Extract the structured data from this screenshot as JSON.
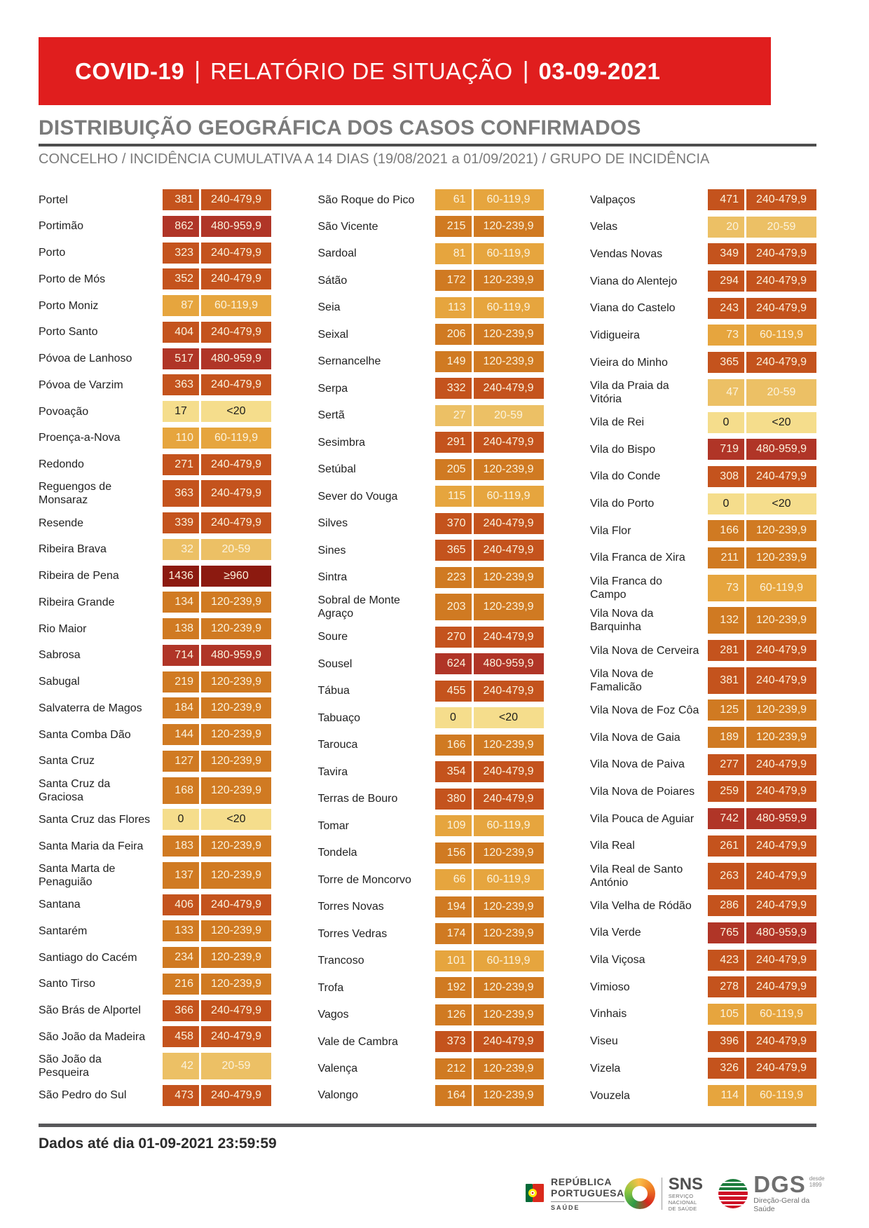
{
  "banner": {
    "product": "COVID-19",
    "separator": "|",
    "title": "RELATÓRIO DE SITUAÇÃO",
    "date": "03-09-2021",
    "background_color": "#E01E1E"
  },
  "heading": {
    "title": "DISTRIBUIÇÃO GEOGRÁFICA DOS CASOS CONFIRMADOS",
    "subtitle": "CONCELHO / INCIDÊNCIA CUMULATIVA A 14 DIAS (19/08/2021 a 01/09/2021) / GRUPO DE INCIDÊNCIA"
  },
  "bands": {
    "lt20": {
      "label": "<20",
      "bg": "#F5DD8C",
      "fg": "#1D1D1B"
    },
    "b20": {
      "label": "20-59",
      "bg": "#ECC065",
      "fg": "#FBF2DC"
    },
    "b60": {
      "label": "60-119,9",
      "bg": "#E6A53E",
      "fg": "#FBF2DC"
    },
    "b120": {
      "label": "120-239,9",
      "bg": "#D07A22",
      "fg": "#FBF2DC"
    },
    "b240": {
      "label": "240-479,9",
      "bg": "#C4531D",
      "fg": "#FBF2DC"
    },
    "b480": {
      "label": "480-959,9",
      "bg": "#B03527",
      "fg": "#FBF2DC"
    },
    "b960": {
      "label": "≥960",
      "bg": "#8C1A10",
      "fg": "#FBF2DC"
    }
  },
  "table": {
    "columns": [
      {
        "rows": [
          {
            "n": "Portel",
            "v": "381",
            "g": "240-479,9",
            "b": "b240"
          },
          {
            "n": "Portimão",
            "v": "862",
            "g": "480-959,9",
            "b": "b480"
          },
          {
            "n": "Porto",
            "v": "323",
            "g": "240-479,9",
            "b": "b240"
          },
          {
            "n": "Porto de Mós",
            "v": "352",
            "g": "240-479,9",
            "b": "b240"
          },
          {
            "n": "Porto Moniz",
            "v": "87",
            "g": "60-119,9",
            "b": "b60"
          },
          {
            "n": "Porto Santo",
            "v": "404",
            "g": "240-479,9",
            "b": "b240"
          },
          {
            "n": "Póvoa de Lanhoso",
            "v": "517",
            "g": "480-959,9",
            "b": "b480"
          },
          {
            "n": "Póvoa de Varzim",
            "v": "363",
            "g": "240-479,9",
            "b": "b240"
          },
          {
            "n": "Povoação",
            "v": "17",
            "g": "<20",
            "b": "lt20"
          },
          {
            "n": "Proença-a-Nova",
            "v": "110",
            "g": "60-119,9",
            "b": "b60"
          },
          {
            "n": "Redondo",
            "v": "271",
            "g": "240-479,9",
            "b": "b240"
          },
          {
            "n": "Reguengos de\nMonsaraz",
            "v": "363",
            "g": "240-479,9",
            "b": "b240"
          },
          {
            "n": "Resende",
            "v": "339",
            "g": "240-479,9",
            "b": "b240"
          },
          {
            "n": "Ribeira Brava",
            "v": "32",
            "g": "20-59",
            "b": "b20"
          },
          {
            "n": "Ribeira de Pena",
            "v": "1436",
            "g": "≥960",
            "b": "b960"
          },
          {
            "n": "Ribeira Grande",
            "v": "134",
            "g": "120-239,9",
            "b": "b120"
          },
          {
            "n": "Rio Maior",
            "v": "138",
            "g": "120-239,9",
            "b": "b120"
          },
          {
            "n": "Sabrosa",
            "v": "714",
            "g": "480-959,9",
            "b": "b480"
          },
          {
            "n": "Sabugal",
            "v": "219",
            "g": "120-239,9",
            "b": "b120"
          },
          {
            "n": "Salvaterra de Magos",
            "v": "184",
            "g": "120-239,9",
            "b": "b120"
          },
          {
            "n": "Santa Comba Dão",
            "v": "144",
            "g": "120-239,9",
            "b": "b120"
          },
          {
            "n": "Santa Cruz",
            "v": "127",
            "g": "120-239,9",
            "b": "b120"
          },
          {
            "n": "Santa Cruz da\nGraciosa",
            "v": "168",
            "g": "120-239,9",
            "b": "b120"
          },
          {
            "n": "Santa Cruz das Flores",
            "v": "0",
            "g": "<20",
            "b": "lt20"
          },
          {
            "n": "Santa Maria da Feira",
            "v": "183",
            "g": "120-239,9",
            "b": "b120"
          },
          {
            "n": "Santa Marta de\nPenaguião",
            "v": "137",
            "g": "120-239,9",
            "b": "b120"
          },
          {
            "n": "Santana",
            "v": "406",
            "g": "240-479,9",
            "b": "b240"
          },
          {
            "n": "Santarém",
            "v": "133",
            "g": "120-239,9",
            "b": "b120"
          },
          {
            "n": "Santiago do Cacém",
            "v": "234",
            "g": "120-239,9",
            "b": "b120"
          },
          {
            "n": "Santo Tirso",
            "v": "216",
            "g": "120-239,9",
            "b": "b120"
          },
          {
            "n": "São Brás de Alportel",
            "v": "366",
            "g": "240-479,9",
            "b": "b240"
          },
          {
            "n": "São João da Madeira",
            "v": "458",
            "g": "240-479,9",
            "b": "b240"
          },
          {
            "n": "São João da\nPesqueira",
            "v": "42",
            "g": "20-59",
            "b": "b20"
          },
          {
            "n": "São Pedro do Sul",
            "v": "473",
            "g": "240-479,9",
            "b": "b240"
          }
        ]
      },
      {
        "rows": [
          {
            "n": "São Roque do Pico",
            "v": "61",
            "g": "60-119,9",
            "b": "b60"
          },
          {
            "n": "São Vicente",
            "v": "215",
            "g": "120-239,9",
            "b": "b120"
          },
          {
            "n": "Sardoal",
            "v": "81",
            "g": "60-119,9",
            "b": "b60"
          },
          {
            "n": "Sátão",
            "v": "172",
            "g": "120-239,9",
            "b": "b120"
          },
          {
            "n": "Seia",
            "v": "113",
            "g": "60-119,9",
            "b": "b60"
          },
          {
            "n": "Seixal",
            "v": "206",
            "g": "120-239,9",
            "b": "b120"
          },
          {
            "n": "Sernancelhe",
            "v": "149",
            "g": "120-239,9",
            "b": "b120"
          },
          {
            "n": "Serpa",
            "v": "332",
            "g": "240-479,9",
            "b": "b240"
          },
          {
            "n": "Sertã",
            "v": "27",
            "g": "20-59",
            "b": "b20"
          },
          {
            "n": "Sesimbra",
            "v": "291",
            "g": "240-479,9",
            "b": "b240"
          },
          {
            "n": "Setúbal",
            "v": "205",
            "g": "120-239,9",
            "b": "b120"
          },
          {
            "n": "Sever do Vouga",
            "v": "115",
            "g": "60-119,9",
            "b": "b60"
          },
          {
            "n": "Silves",
            "v": "370",
            "g": "240-479,9",
            "b": "b240"
          },
          {
            "n": "Sines",
            "v": "365",
            "g": "240-479,9",
            "b": "b240"
          },
          {
            "n": "Sintra",
            "v": "223",
            "g": "120-239,9",
            "b": "b120"
          },
          {
            "n": "Sobral de Monte\nAgraço",
            "v": "203",
            "g": "120-239,9",
            "b": "b120"
          },
          {
            "n": "Soure",
            "v": "270",
            "g": "240-479,9",
            "b": "b240"
          },
          {
            "n": "Sousel",
            "v": "624",
            "g": "480-959,9",
            "b": "b480"
          },
          {
            "n": "Tábua",
            "v": "455",
            "g": "240-479,9",
            "b": "b240"
          },
          {
            "n": "Tabuaço",
            "v": "0",
            "g": "<20",
            "b": "lt20"
          },
          {
            "n": "Tarouca",
            "v": "166",
            "g": "120-239,9",
            "b": "b120"
          },
          {
            "n": "Tavira",
            "v": "354",
            "g": "240-479,9",
            "b": "b240"
          },
          {
            "n": "Terras de Bouro",
            "v": "380",
            "g": "240-479,9",
            "b": "b240"
          },
          {
            "n": "Tomar",
            "v": "109",
            "g": "60-119,9",
            "b": "b60"
          },
          {
            "n": "Tondela",
            "v": "156",
            "g": "120-239,9",
            "b": "b120"
          },
          {
            "n": "Torre de Moncorvo",
            "v": "66",
            "g": "60-119,9",
            "b": "b60"
          },
          {
            "n": "Torres Novas",
            "v": "194",
            "g": "120-239,9",
            "b": "b120"
          },
          {
            "n": "Torres Vedras",
            "v": "174",
            "g": "120-239,9",
            "b": "b120"
          },
          {
            "n": "Trancoso",
            "v": "101",
            "g": "60-119,9",
            "b": "b60"
          },
          {
            "n": "Trofa",
            "v": "192",
            "g": "120-239,9",
            "b": "b120"
          },
          {
            "n": "Vagos",
            "v": "126",
            "g": "120-239,9",
            "b": "b120"
          },
          {
            "n": "Vale de Cambra",
            "v": "373",
            "g": "240-479,9",
            "b": "b240"
          },
          {
            "n": "Valença",
            "v": "212",
            "g": "120-239,9",
            "b": "b120"
          },
          {
            "n": "Valongo",
            "v": "164",
            "g": "120-239,9",
            "b": "b120"
          }
        ]
      },
      {
        "rows": [
          {
            "n": "Valpaços",
            "v": "471",
            "g": "240-479,9",
            "b": "b240"
          },
          {
            "n": "Velas",
            "v": "20",
            "g": "20-59",
            "b": "b20"
          },
          {
            "n": "Vendas Novas",
            "v": "349",
            "g": "240-479,9",
            "b": "b240"
          },
          {
            "n": "Viana do Alentejo",
            "v": "294",
            "g": "240-479,9",
            "b": "b240"
          },
          {
            "n": "Viana do Castelo",
            "v": "243",
            "g": "240-479,9",
            "b": "b240"
          },
          {
            "n": "Vidigueira",
            "v": "73",
            "g": "60-119,9",
            "b": "b60"
          },
          {
            "n": "Vieira do Minho",
            "v": "365",
            "g": "240-479,9",
            "b": "b240"
          },
          {
            "n": "Vila da Praia da\nVitória",
            "v": "47",
            "g": "20-59",
            "b": "b20"
          },
          {
            "n": "Vila de Rei",
            "v": "0",
            "g": "<20",
            "b": "lt20"
          },
          {
            "n": "Vila do Bispo",
            "v": "719",
            "g": "480-959,9",
            "b": "b480"
          },
          {
            "n": "Vila do Conde",
            "v": "308",
            "g": "240-479,9",
            "b": "b240"
          },
          {
            "n": "Vila do Porto",
            "v": "0",
            "g": "<20",
            "b": "lt20"
          },
          {
            "n": "Vila Flor",
            "v": "166",
            "g": "120-239,9",
            "b": "b120"
          },
          {
            "n": "Vila Franca de Xira",
            "v": "211",
            "g": "120-239,9",
            "b": "b120"
          },
          {
            "n": "Vila Franca do\nCampo",
            "v": "73",
            "g": "60-119,9",
            "b": "b60"
          },
          {
            "n": "Vila Nova da\nBarquinha",
            "v": "132",
            "g": "120-239,9",
            "b": "b120"
          },
          {
            "n": "Vila Nova de Cerveira",
            "v": "281",
            "g": "240-479,9",
            "b": "b240"
          },
          {
            "n": "Vila Nova de\nFamalicão",
            "v": "381",
            "g": "240-479,9",
            "b": "b240"
          },
          {
            "n": "Vila Nova de Foz Côa",
            "v": "125",
            "g": "120-239,9",
            "b": "b120"
          },
          {
            "n": "Vila Nova de Gaia",
            "v": "189",
            "g": "120-239,9",
            "b": "b120"
          },
          {
            "n": "Vila Nova de Paiva",
            "v": "277",
            "g": "240-479,9",
            "b": "b240"
          },
          {
            "n": "Vila Nova de Poiares",
            "v": "259",
            "g": "240-479,9",
            "b": "b240"
          },
          {
            "n": "Vila Pouca de Aguiar",
            "v": "742",
            "g": "480-959,9",
            "b": "b480"
          },
          {
            "n": "Vila Real",
            "v": "261",
            "g": "240-479,9",
            "b": "b240"
          },
          {
            "n": "Vila Real de Santo\nAntónio",
            "v": "263",
            "g": "240-479,9",
            "b": "b240"
          },
          {
            "n": "Vila Velha de Ródão",
            "v": "286",
            "g": "240-479,9",
            "b": "b240"
          },
          {
            "n": "Vila Verde",
            "v": "765",
            "g": "480-959,9",
            "b": "b480"
          },
          {
            "n": "Vila Viçosa",
            "v": "423",
            "g": "240-479,9",
            "b": "b240"
          },
          {
            "n": "Vimioso",
            "v": "278",
            "g": "240-479,9",
            "b": "b240"
          },
          {
            "n": "Vinhais",
            "v": "105",
            "g": "60-119,9",
            "b": "b60"
          },
          {
            "n": "Viseu",
            "v": "396",
            "g": "240-479,9",
            "b": "b240"
          },
          {
            "n": "Vizela",
            "v": "326",
            "g": "240-479,9",
            "b": "b240"
          },
          {
            "n": "Vouzela",
            "v": "114",
            "g": "60-119,9",
            "b": "b60"
          }
        ]
      }
    ]
  },
  "footer": {
    "note": "Dados até dia 01-09-2021 23:59:59",
    "logos": {
      "republica": {
        "line1": "REPÚBLICA",
        "line2": "PORTUGUESA",
        "department": "SAÚDE"
      },
      "sns": {
        "acronym": "SNS",
        "subtitle1": "SERVIÇO NACIONAL",
        "subtitle2": "DE SAÚDE"
      },
      "dgs": {
        "acronym": "DGS",
        "since1": "desde",
        "since2": "1899",
        "subtitle": "Direção-Geral da Saúde"
      }
    }
  }
}
